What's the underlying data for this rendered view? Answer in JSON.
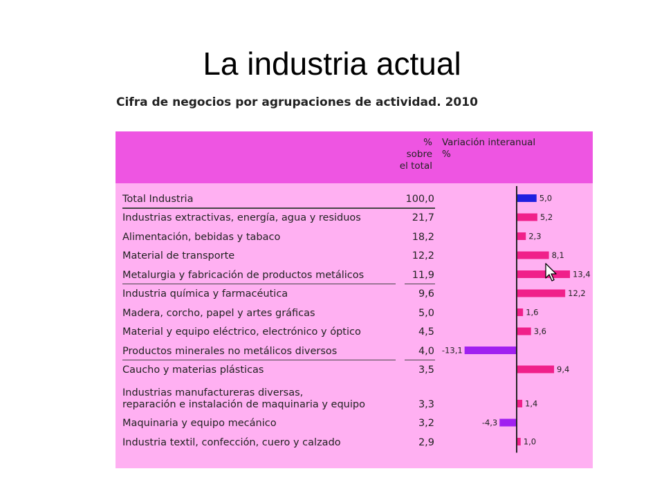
{
  "slide": {
    "title": "La industria actual"
  },
  "chart_data": {
    "type": "table",
    "title": "Cifra de negocios por agrupaciones de actividad. 2010",
    "columns": {
      "pct_header": [
        "%",
        "sobre",
        "el total"
      ],
      "var_header": [
        "Variación interanual",
        "%"
      ]
    },
    "rows": [
      {
        "label": [
          "Total Industria"
        ],
        "pct": "100,0",
        "variation": 5.0,
        "variation_label": "5,0",
        "color": "#2020e0"
      },
      {
        "label": [
          "Industrias extractivas, energía, agua y residuos"
        ],
        "pct": "21,7",
        "variation": 5.2,
        "variation_label": "5,2",
        "color": "#f0208a"
      },
      {
        "label": [
          "Alimentación, bebidas y tabaco"
        ],
        "pct": "18,2",
        "variation": 2.3,
        "variation_label": "2,3",
        "color": "#f0208a"
      },
      {
        "label": [
          "Material de transporte"
        ],
        "pct": "12,2",
        "variation": 8.1,
        "variation_label": "8,1",
        "color": "#f0208a"
      },
      {
        "label": [
          "Metalurgia y fabricación de productos metálicos"
        ],
        "pct": "11,9",
        "variation": 13.4,
        "variation_label": "13,4",
        "color": "#f0208a"
      },
      {
        "label": [
          "Industria química y farmacéutica"
        ],
        "pct": "9,6",
        "variation": 12.2,
        "variation_label": "12,2",
        "color": "#f0208a"
      },
      {
        "label": [
          "Madera, corcho, papel y artes gráficas"
        ],
        "pct": "5,0",
        "variation": 1.6,
        "variation_label": "1,6",
        "color": "#f0208a"
      },
      {
        "label": [
          "Material y equipo eléctrico, electrónico y óptico"
        ],
        "pct": "4,5",
        "variation": 3.6,
        "variation_label": "3,6",
        "color": "#f0208a"
      },
      {
        "label": [
          "Productos minerales no metálicos diversos"
        ],
        "pct": "4,0",
        "variation": -13.1,
        "variation_label": "-13,1",
        "color": "#a020f0"
      },
      {
        "label": [
          "Caucho y materias plásticas"
        ],
        "pct": "3,5",
        "variation": 9.4,
        "variation_label": "9,4",
        "color": "#f0208a"
      },
      {
        "label": [
          "Industrias manufactureras diversas,",
          "reparación e instalación de maquinaria y equipo"
        ],
        "pct": "3,3",
        "variation": 1.4,
        "variation_label": "1,4",
        "color": "#f0208a"
      },
      {
        "label": [
          "Maquinaria y equipo mecánico"
        ],
        "pct": "3,2",
        "variation": -4.3,
        "variation_label": "-4,3",
        "color": "#a020f0"
      },
      {
        "label": [
          "Industria textil, confección, cuero y calzado"
        ],
        "pct": "2,9",
        "variation": 1.0,
        "variation_label": "1,0",
        "color": "#f0208a"
      }
    ],
    "colors": {
      "header_bg": "#ee55e2",
      "table_bg": "#ffb0f2"
    }
  }
}
